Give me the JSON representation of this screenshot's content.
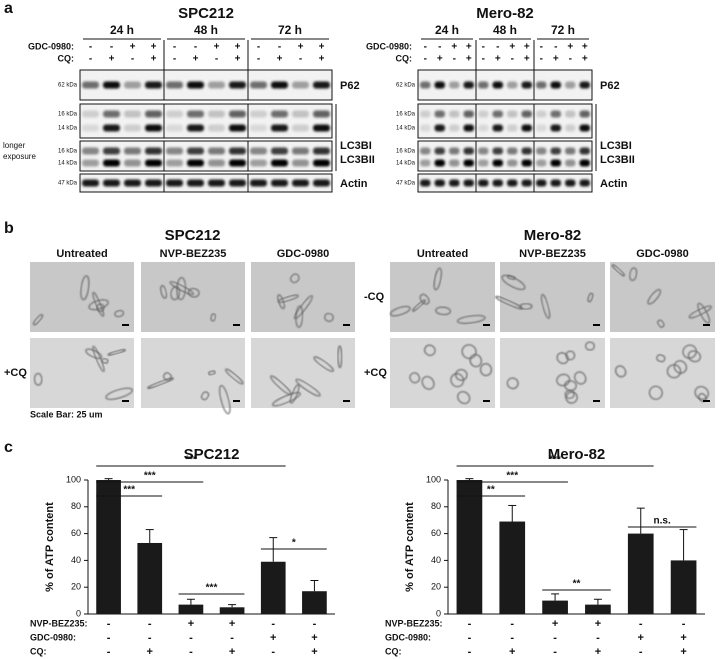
{
  "panel_labels": [
    "a",
    "b",
    "c"
  ],
  "panel_a": [
    {
      "title": "SPC212",
      "times": [
        "24 h",
        "48 h",
        "72 h"
      ],
      "treatments": [
        {
          "label": "GDC-0980:",
          "signs": [
            "-",
            "-",
            "+",
            "+",
            "-",
            "-",
            "+",
            "+",
            "-",
            "-",
            "+",
            "+"
          ]
        },
        {
          "label": "CQ:",
          "signs": [
            "-",
            "+",
            "-",
            "+",
            "-",
            "+",
            "-",
            "+",
            "-",
            "+",
            "-",
            "+"
          ]
        }
      ],
      "kda": [
        "62 kDa",
        "16 kDa",
        "14 kDa",
        "16 kDa",
        "14 kDa",
        "47 kDa"
      ],
      "proteins": [
        "P62",
        "LC3BI",
        "LC3BII",
        "Actin"
      ],
      "note": [
        "longer",
        "exposure"
      ]
    },
    {
      "title": "Mero-82",
      "times": [
        "24 h",
        "48 h",
        "72 h"
      ],
      "treatments": [
        {
          "label": "GDC-0980:",
          "signs": [
            "-",
            "-",
            "+",
            "+",
            "-",
            "-",
            "+",
            "+",
            "-",
            "-",
            "+",
            "+"
          ]
        },
        {
          "label": "CQ:",
          "signs": [
            "-",
            "+",
            "-",
            "+",
            "-",
            "+",
            "-",
            "+",
            "-",
            "+",
            "-",
            "+"
          ]
        }
      ],
      "kda": [
        "62 kDa",
        "16 kDa",
        "14 kDa",
        "16 kDa",
        "14 kDa",
        "47 kDa"
      ],
      "proteins": [
        "P62",
        "LC3BI",
        "LC3BII",
        "Actin"
      ]
    }
  ],
  "panel_b": {
    "panels": [
      {
        "title": "SPC212",
        "columns": [
          "Untreated",
          "NVP-BEZ235",
          "GDC-0980"
        ],
        "rows": [
          null,
          "+CQ"
        ]
      },
      {
        "title": "Mero-82",
        "columns": [
          "Untreated",
          "NVP-BEZ235",
          "GDC-0980"
        ],
        "rows": [
          "-CQ",
          "+CQ"
        ]
      }
    ],
    "scale_bar": "Scale Bar: 25 um"
  },
  "chart_data": [
    {
      "type": "bar",
      "title": "SPC212",
      "y_label": "% of ATP content",
      "values": [
        100,
        53,
        7,
        5,
        39,
        17
      ],
      "errors": [
        1,
        10,
        4,
        2,
        18,
        8
      ],
      "color": "#1a1a1a",
      "ylim": [
        0,
        100
      ],
      "yticks": [
        0,
        20,
        40,
        60,
        80,
        100
      ],
      "treatments": [
        {
          "label": "NVP-BEZ235:",
          "signs": [
            "-",
            "-",
            "+",
            "+",
            "-",
            "-"
          ]
        },
        {
          "label": "GDC-0980:",
          "signs": [
            "-",
            "-",
            "-",
            "-",
            "+",
            "+"
          ]
        },
        {
          "label": "CQ:",
          "signs": [
            "-",
            "+",
            "-",
            "+",
            "-",
            "+"
          ]
        }
      ],
      "significance": [
        "***",
        "***",
        "***",
        "***",
        "*"
      ]
    },
    {
      "type": "bar",
      "title": "Mero-82",
      "y_label": "% of ATP content",
      "values": [
        100,
        69,
        10,
        7,
        60,
        40
      ],
      "errors": [
        1,
        12,
        5,
        4,
        19,
        23
      ],
      "color": "#1a1a1a",
      "ylim": [
        0,
        100
      ],
      "yticks": [
        0,
        20,
        40,
        60,
        80,
        100
      ],
      "treatments": [
        {
          "label": "NVP-BEZ235:",
          "signs": [
            "-",
            "-",
            "+",
            "+",
            "-",
            "-"
          ]
        },
        {
          "label": "GDC-0980:",
          "signs": [
            "-",
            "-",
            "-",
            "-",
            "+",
            "+"
          ]
        },
        {
          "label": "CQ:",
          "signs": [
            "-",
            "+",
            "-",
            "+",
            "-",
            "+"
          ]
        }
      ],
      "significance": [
        "***",
        "***",
        "**",
        "**",
        "n.s."
      ]
    }
  ]
}
